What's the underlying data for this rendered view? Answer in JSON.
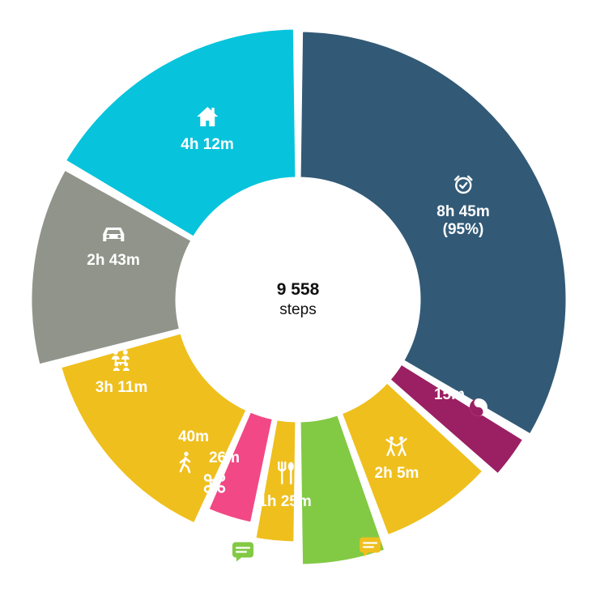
{
  "center": {
    "value": "9 558",
    "unit": "steps"
  },
  "segments": [
    {
      "id": "sleep",
      "label": "8h 45m",
      "sublabel": "(95%)",
      "color": "#325a76",
      "icon": "alarm-clock-icon",
      "minutes": 525
    },
    {
      "id": "meditation",
      "label": "15m",
      "color": "#9b1f63",
      "icon": "yin-yang-icon",
      "minutes": 15
    },
    {
      "id": "dancing",
      "label": "2h 5m",
      "color": "#efbf1d",
      "icon": "dancers-icon",
      "minutes": 125
    },
    {
      "id": "eating",
      "label": "1h 25m",
      "color": "#82c944",
      "icon": "fork-spoon-icon",
      "minutes": 85
    },
    {
      "id": "command",
      "label": "26m",
      "color": "#efbf1d",
      "icon": "command-icon",
      "minutes": 26
    },
    {
      "id": "walking",
      "label": "40m",
      "color": "#f24885",
      "icon": "walking-icon",
      "minutes": 40
    },
    {
      "id": "family",
      "label": "3h 11m",
      "color": "#efbf1d",
      "icon": "family-tree-icon",
      "minutes": 191
    },
    {
      "id": "driving",
      "label": "2h 43m",
      "color": "#91948a",
      "icon": "car-icon",
      "minutes": 163
    },
    {
      "id": "home",
      "label": "4h 12m",
      "color": "#07c4dc",
      "icon": "house-icon",
      "minutes": 252
    }
  ],
  "note_icon": "comment-icon"
}
